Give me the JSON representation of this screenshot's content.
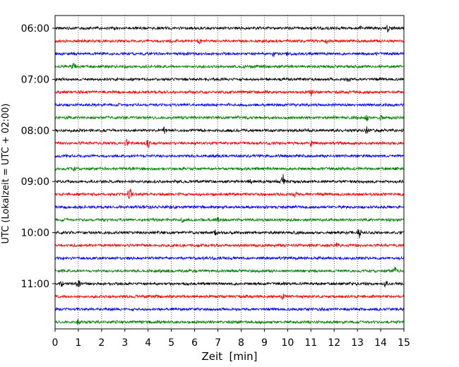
{
  "chart_data": {
    "type": "line",
    "subtype": "helicorder",
    "xlabel": "Zeit  [min]",
    "ylabel": "UTC (Lokalzeit = UTC + 02:00)",
    "xlim": [
      0,
      15
    ],
    "x_ticks": [
      0,
      1,
      2,
      3,
      4,
      5,
      6,
      7,
      8,
      9,
      10,
      11,
      12,
      13,
      14,
      15
    ],
    "x_grid": "dotted",
    "trace_interval_min": 15,
    "trace_colors": [
      "#000000",
      "#ff0000",
      "#0000ff",
      "#008000"
    ],
    "y_tick_labels": [
      "06:00",
      "07:00",
      "08:00",
      "09:00",
      "10:00",
      "11:00"
    ],
    "traces": [
      {
        "start": "06:00",
        "color": "#000000",
        "events": [
          {
            "x": 13.1,
            "amp": 3
          },
          {
            "x": 14.3,
            "amp": 4
          }
        ]
      },
      {
        "start": "06:15",
        "color": "#ff0000",
        "events": [
          {
            "x": 6.2,
            "amp": 4
          },
          {
            "x": 11.7,
            "amp": 3
          }
        ]
      },
      {
        "start": "06:30",
        "color": "#0000ff",
        "events": [
          {
            "x": 9.4,
            "amp": 4
          },
          {
            "x": 10.0,
            "amp": 3
          }
        ]
      },
      {
        "start": "06:45",
        "color": "#008000",
        "events": [
          {
            "x": 0.8,
            "amp": 5
          }
        ]
      },
      {
        "start": "07:00",
        "color": "#000000",
        "events": [
          {
            "x": 12.6,
            "amp": 3
          }
        ]
      },
      {
        "start": "07:15",
        "color": "#ff0000",
        "events": [
          {
            "x": 11.0,
            "amp": 4
          }
        ]
      },
      {
        "start": "07:30",
        "color": "#0000ff",
        "events": []
      },
      {
        "start": "07:45",
        "color": "#008000",
        "events": [
          {
            "x": 13.4,
            "amp": 4
          },
          {
            "x": 14.0,
            "amp": 4
          }
        ]
      },
      {
        "start": "08:00",
        "color": "#000000",
        "events": [
          {
            "x": 4.7,
            "amp": 4
          },
          {
            "x": 13.4,
            "amp": 4
          }
        ]
      },
      {
        "start": "08:15",
        "color": "#ff0000",
        "events": [
          {
            "x": 3.1,
            "amp": 5
          },
          {
            "x": 4.0,
            "amp": 5
          },
          {
            "x": 11.0,
            "amp": 4
          }
        ]
      },
      {
        "start": "08:30",
        "color": "#0000ff",
        "events": []
      },
      {
        "start": "08:45",
        "color": "#008000",
        "events": [
          {
            "x": 0.8,
            "amp": 3
          }
        ]
      },
      {
        "start": "09:00",
        "color": "#000000",
        "events": [
          {
            "x": 9.8,
            "amp": 10
          },
          {
            "x": 8.4,
            "amp": 3
          }
        ]
      },
      {
        "start": "09:15",
        "color": "#ff0000",
        "events": [
          {
            "x": 3.2,
            "amp": 9
          },
          {
            "x": 10.3,
            "amp": 3
          }
        ]
      },
      {
        "start": "09:30",
        "color": "#0000ff",
        "events": []
      },
      {
        "start": "09:45",
        "color": "#008000",
        "events": [
          {
            "x": 5.5,
            "amp": 4
          },
          {
            "x": 7.0,
            "amp": 4
          }
        ]
      },
      {
        "start": "10:00",
        "color": "#000000",
        "events": [
          {
            "x": 6.9,
            "amp": 3
          },
          {
            "x": 13.1,
            "amp": 7
          }
        ]
      },
      {
        "start": "10:15",
        "color": "#ff0000",
        "events": [
          {
            "x": 12.1,
            "amp": 3
          }
        ]
      },
      {
        "start": "10:30",
        "color": "#0000ff",
        "events": []
      },
      {
        "start": "10:45",
        "color": "#008000",
        "events": [
          {
            "x": 14.6,
            "amp": 6
          }
        ]
      },
      {
        "start": "11:00",
        "color": "#000000",
        "events": [
          {
            "x": 0.3,
            "amp": 5
          },
          {
            "x": 1.0,
            "amp": 4
          },
          {
            "x": 14.2,
            "amp": 4
          }
        ]
      },
      {
        "start": "11:15",
        "color": "#ff0000",
        "events": [
          {
            "x": 9.8,
            "amp": 4
          }
        ]
      },
      {
        "start": "11:30",
        "color": "#0000ff",
        "events": []
      },
      {
        "start": "11:45",
        "color": "#008000",
        "events": [
          {
            "x": 1.0,
            "amp": 3
          }
        ]
      }
    ]
  }
}
